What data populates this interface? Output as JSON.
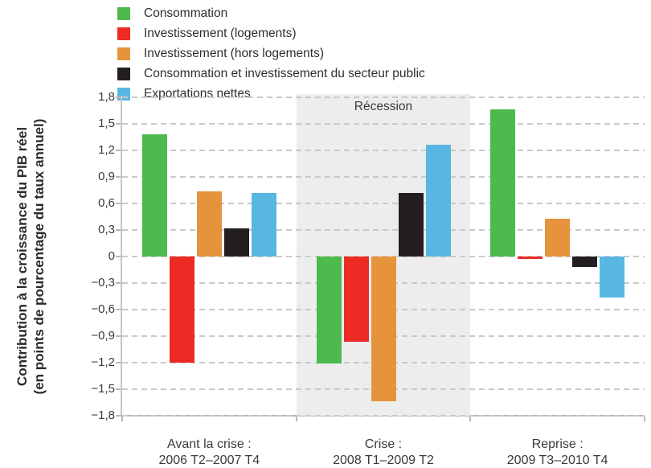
{
  "figure": {
    "y_axis_title_line1": "Contribution à la croissance du PIB réel",
    "y_axis_title_line2": "(en points de pourcentage du taux annuel)"
  },
  "colors": {
    "band": "#ededed",
    "gridline": "#c9c9c9",
    "axis": "#b8b8b8",
    "text": "#3a3a3a"
  },
  "chart_data": {
    "type": "bar",
    "title": "",
    "xlabel": "",
    "ylabel": "Contribution à la croissance du PIB réel (en points de pourcentage du taux annuel)",
    "ylim": [
      -1.8,
      1.8
    ],
    "ytick_step": 0.3,
    "ytick_labels": [
      "1,8",
      "1,5",
      "1,2",
      "0,9",
      "0,6",
      "0,3",
      "0",
      "−0,3",
      "−0,6",
      "−0,9",
      "−1,2",
      "−1,5",
      "−1,8"
    ],
    "grid": "dashed-horizontal",
    "legend_position": "top-left",
    "categories": [
      {
        "line1": "Avant la crise :",
        "line2": "2006 T2–2007 T4"
      },
      {
        "line1": "Crise :",
        "line2": "2008 T1–2009 T2"
      },
      {
        "line1": "Reprise :",
        "line2": "2009 T3–2010 T4"
      }
    ],
    "series": [
      {
        "key": "consommation",
        "name": "Consommation",
        "color": "#4DBA4D",
        "values": [
          1.38,
          -1.21,
          1.66
        ]
      },
      {
        "key": "inv-logements",
        "name": "Investissement (logements)",
        "color": "#ED2B24",
        "values": [
          -1.2,
          -0.96,
          -0.03
        ]
      },
      {
        "key": "inv-hors-logements",
        "name": "Investissement (hors logements)",
        "color": "#E6943C",
        "values": [
          0.74,
          -1.64,
          0.43
        ]
      },
      {
        "key": "secteur-public",
        "name": "Consommation et investissement du secteur public",
        "color": "#231F20",
        "values": [
          0.32,
          0.72,
          -0.12
        ]
      },
      {
        "key": "exportations-nettes",
        "name": "Exportations nettes",
        "color": "#58B6E2",
        "values": [
          0.72,
          1.26,
          -0.46
        ]
      }
    ],
    "annotations": [
      {
        "type": "band",
        "text": "Récession",
        "category_index": 1
      }
    ]
  }
}
